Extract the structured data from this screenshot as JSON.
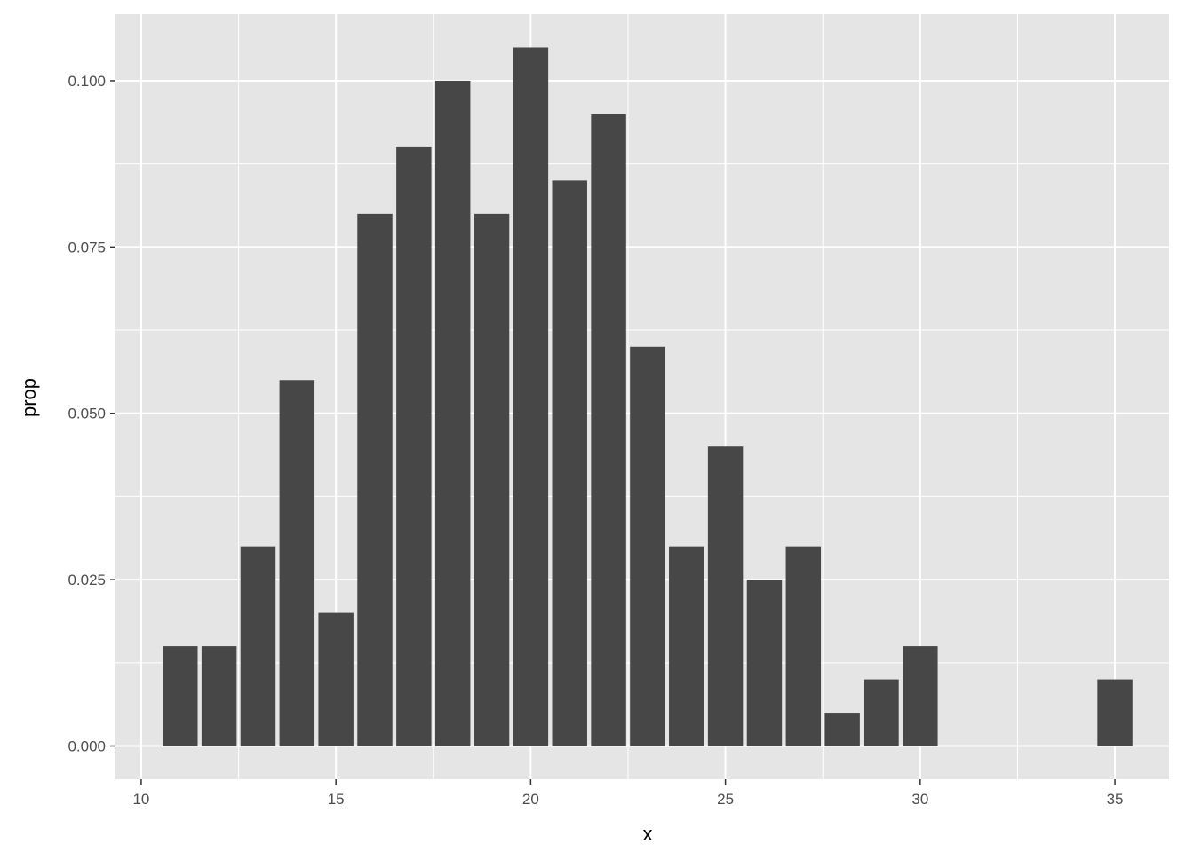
{
  "chart_data": {
    "type": "bar",
    "title": "",
    "xlabel": "x",
    "ylabel": "prop",
    "x": [
      11,
      12,
      13,
      14,
      15,
      16,
      17,
      18,
      19,
      20,
      21,
      22,
      23,
      24,
      25,
      26,
      27,
      28,
      29,
      30,
      35
    ],
    "values": [
      0.015,
      0.015,
      0.03,
      0.055,
      0.02,
      0.08,
      0.09,
      0.1,
      0.08,
      0.105,
      0.085,
      0.095,
      0.06,
      0.03,
      0.045,
      0.025,
      0.03,
      0.005,
      0.01,
      0.015,
      0.01
    ],
    "xlim": [
      9.34,
      36.39
    ],
    "ylim": [
      -0.005,
      0.11
    ],
    "xticks": [
      10,
      15,
      20,
      25,
      30,
      35
    ],
    "xtick_labels": [
      "10",
      "15",
      "20",
      "25",
      "30",
      "35"
    ],
    "yticks": [
      0,
      0.025,
      0.05,
      0.075,
      0.1
    ],
    "ytick_labels": [
      "0.000",
      "0.025",
      "0.050",
      "0.075",
      "0.100"
    ],
    "grid": true,
    "colors": {
      "panel": "#e5e5e5",
      "bar": "#474747",
      "grid": "#ffffff"
    }
  }
}
